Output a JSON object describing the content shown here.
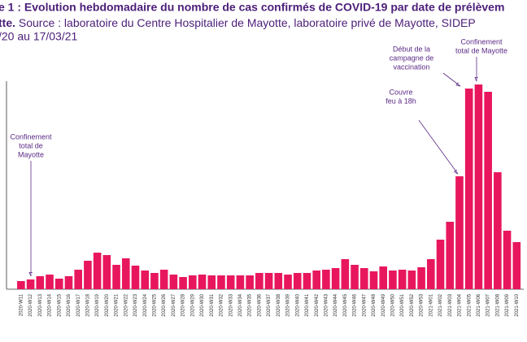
{
  "chart_data": {
    "type": "bar",
    "title": "e 1 : Evolution hebdomadaire du nombre de cas confirmés de COVID-19 par date de prélèvem",
    "subtitle_bold": "tte.",
    "subtitle": "Source : laboratoire du Centre Hospitalier de Mayotte, laboratoire privé de Mayotte, SIDEP",
    "period": "/20 au 17/03/21",
    "color": "#e8175d",
    "ylim": [
      0,
      260
    ],
    "categories": [
      "2020-W11",
      "2020-W12",
      "2020-W13",
      "2020-W14",
      "2020-W15",
      "2020-W16",
      "2020-W17",
      "2020-W18",
      "2020-W19",
      "2020-W20",
      "2020-W21",
      "2020-W22",
      "2020-W23",
      "2020-W24",
      "2020-W25",
      "2020-W26",
      "2020-W27",
      "2020-W28",
      "2020-W29",
      "2020-W30",
      "2020-W31",
      "2020-W32",
      "2020-W33",
      "2020-W34",
      "2020-W35",
      "2020-W36",
      "2020-W37",
      "2020-W38",
      "2020-W39",
      "2020-W40",
      "2020-W41",
      "2020-W42",
      "2020-W43",
      "2020-W44",
      "2020-W45",
      "2020-W46",
      "2020-W47",
      "2020-W48",
      "2020-W49",
      "2020-W50",
      "2020-W51",
      "2020-W52",
      "2020-W53",
      "2021-W01",
      "2021-W02",
      "2021-W03",
      "2021-W04",
      "2021-W05",
      "2021-W06",
      "2021-W07",
      "2021-W08",
      "2021-W09",
      "2021-W10"
    ],
    "values": [
      10,
      12,
      16,
      18,
      13,
      16,
      24,
      35,
      45,
      42,
      30,
      38,
      29,
      23,
      20,
      24,
      18,
      15,
      17,
      18,
      17,
      17,
      17,
      17,
      17,
      20,
      20,
      20,
      18,
      20,
      20,
      23,
      24,
      26,
      37,
      30,
      26,
      22,
      28,
      23,
      24,
      23,
      27,
      37,
      61,
      83,
      139,
      247,
      252,
      243,
      144,
      72,
      58
    ],
    "annotations": [
      {
        "lines": [
          "Confinement",
          "total de",
          "Mayotte"
        ]
      },
      {
        "lines": [
          "Couvre",
          "feu à 18h"
        ]
      },
      {
        "lines": [
          "Début de la",
          "campagne de",
          "vaccination"
        ]
      },
      {
        "lines": [
          "Confinement",
          "total de Mayotte"
        ]
      }
    ]
  }
}
